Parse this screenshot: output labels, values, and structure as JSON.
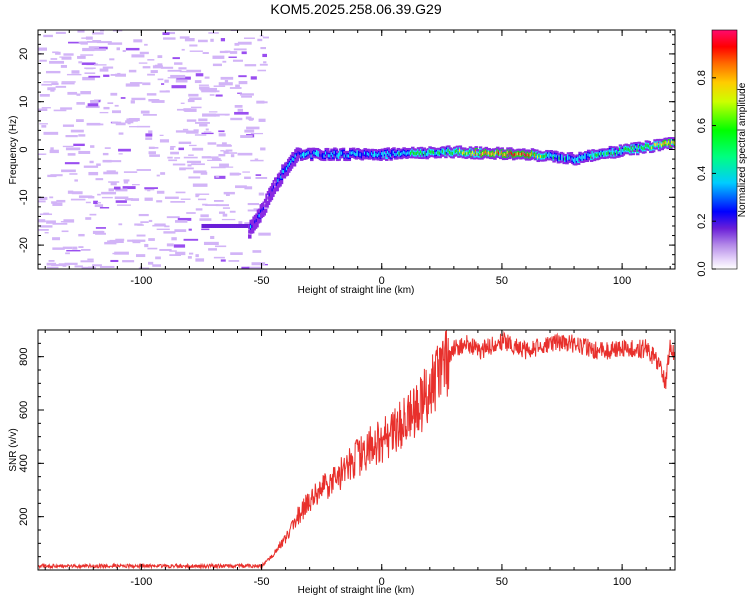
{
  "figure": {
    "title": "KOM5.2025.258.06.39.G29"
  },
  "chart_data": [
    {
      "type": "heatmap",
      "name": "spectrogram",
      "title": "KOM5.2025.258.06.39.G29",
      "xlabel": "Height of straight line (km)",
      "ylabel": "Frequency (Hz)",
      "xlim": [
        -143,
        122
      ],
      "ylim": [
        -25,
        25
      ],
      "xticks": [
        -100,
        -50,
        0,
        50,
        100
      ],
      "yticks": [
        -20,
        -10,
        0,
        10,
        20
      ],
      "colorbar": {
        "label": "Normalized spectral amplitude",
        "range": [
          0,
          1
        ],
        "ticks": [
          0.0,
          0.2,
          0.4,
          0.6,
          0.8
        ],
        "tick_labels": [
          "0.0",
          "0.2",
          "0.4",
          "0.6",
          "0.8"
        ],
        "colormap": [
          "#ffffff",
          "#d7b8f5",
          "#8a2be2",
          "#0000ff",
          "#00ffff",
          "#00ff00",
          "#ffff00",
          "#ff7f00",
          "#ff0000",
          "#ff0080"
        ]
      },
      "signal_track": {
        "description_free": true,
        "x": [
          -55,
          -50,
          -45,
          -40,
          -35,
          0,
          25,
          50,
          60,
          70,
          80,
          90,
          110,
          122
        ],
        "y": [
          -17,
          -13,
          -8,
          -4,
          -1,
          -1,
          -0.5,
          -0.8,
          -1,
          -1.5,
          -2,
          -1,
          0.5,
          1.5
        ],
        "amplitude": [
          0.25,
          0.3,
          0.3,
          0.35,
          0.4,
          0.45,
          0.55,
          0.9,
          0.9,
          0.5,
          0.4,
          0.5,
          0.6,
          0.85
        ]
      }
    },
    {
      "type": "line",
      "name": "snr",
      "xlabel": "Height of straight line (km)",
      "ylabel": "SNR (v/v)",
      "xlim": [
        -143,
        122
      ],
      "ylim": [
        0,
        900
      ],
      "xticks": [
        -100,
        -50,
        0,
        50,
        100
      ],
      "yticks": [
        200,
        400,
        600,
        800
      ],
      "color": "#e8302c",
      "series": [
        {
          "name": "SNR",
          "x": [
            -143,
            -120,
            -100,
            -80,
            -60,
            -50,
            -45,
            -40,
            -35,
            -30,
            -25,
            -20,
            -15,
            -10,
            -5,
            0,
            5,
            10,
            15,
            20,
            25,
            30,
            35,
            40,
            45,
            50,
            55,
            60,
            70,
            80,
            90,
            100,
            110,
            115,
            118,
            120,
            122
          ],
          "values": [
            15,
            15,
            15,
            15,
            15,
            15,
            60,
            120,
            200,
            260,
            300,
            340,
            380,
            420,
            460,
            480,
            520,
            560,
            600,
            680,
            750,
            830,
            850,
            820,
            840,
            860,
            840,
            820,
            850,
            850,
            820,
            830,
            830,
            780,
            700,
            840,
            800
          ]
        }
      ]
    }
  ]
}
